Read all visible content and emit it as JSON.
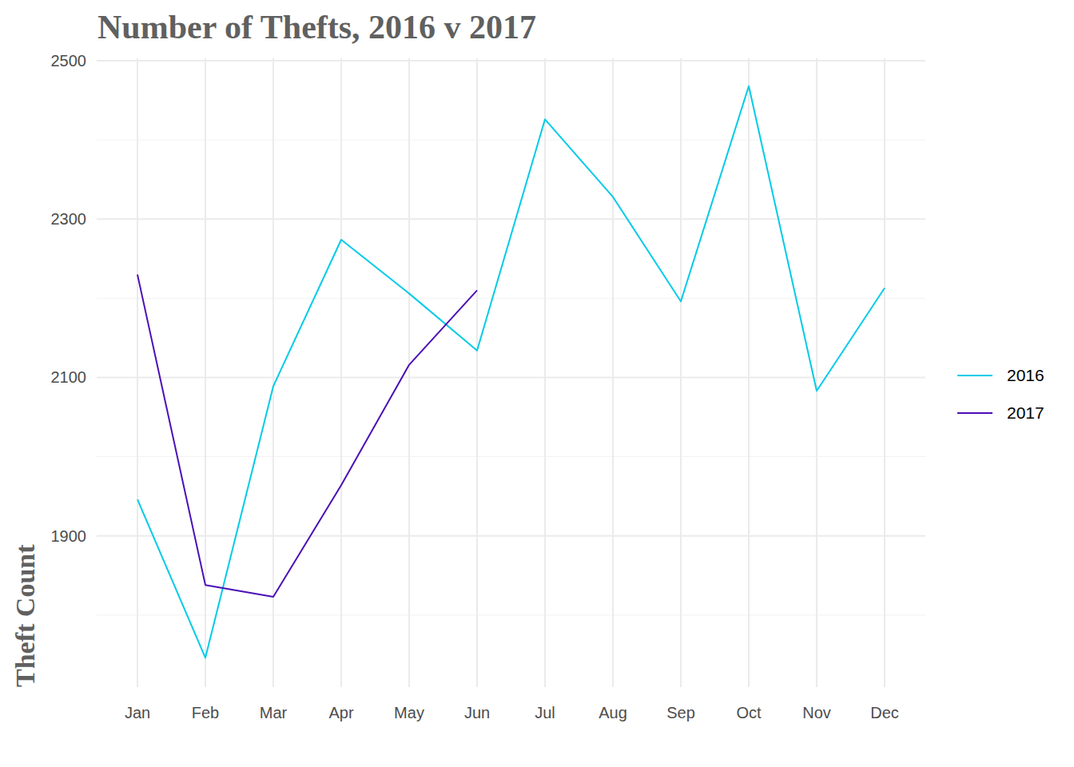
{
  "chart_data": {
    "type": "line",
    "title": "Number of Thefts, 2016 v 2017",
    "y_label": "Theft Count",
    "categories": [
      "Jan",
      "Feb",
      "Mar",
      "Apr",
      "May",
      "Jun",
      "Jul",
      "Aug",
      "Sep",
      "Oct",
      "Nov",
      "Dec"
    ],
    "series": [
      {
        "name": "2016",
        "color": "#00cbe7",
        "values": [
          1946,
          1746,
          2089,
          2274,
          2206,
          2134,
          2426,
          2328,
          2196,
          2468,
          2083,
          2213
        ]
      },
      {
        "name": "2017",
        "color": "#4b0fb5",
        "values": [
          2230,
          1838,
          1823,
          1964,
          2116,
          2210,
          null,
          null,
          null,
          null,
          null,
          null
        ]
      }
    ],
    "ylim": [
      1709,
      2503
    ],
    "yticks": [
      1900,
      2100,
      2300,
      2500
    ],
    "grid": true,
    "legend": "right"
  }
}
